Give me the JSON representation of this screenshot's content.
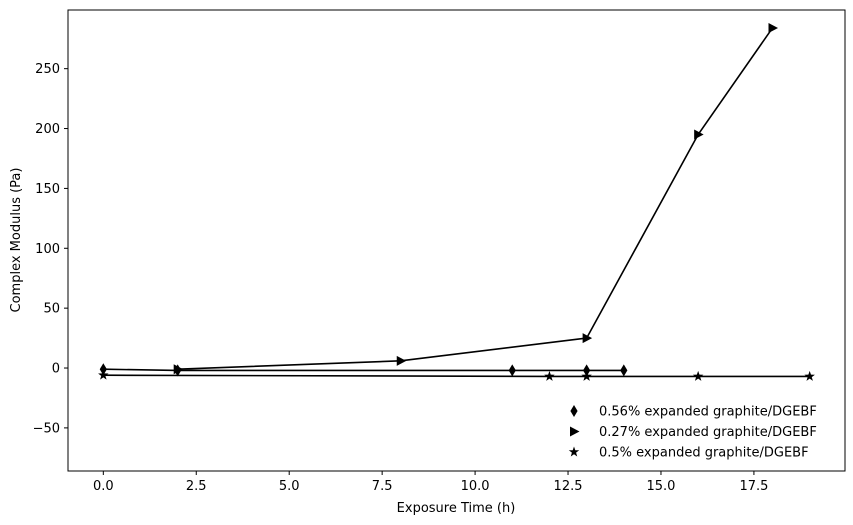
{
  "chart_data": {
    "type": "line",
    "title": "",
    "xlabel": "Exposure Time (h)",
    "ylabel": "Complex Modulus (Pa)",
    "xlim": [
      -0.95,
      19.95
    ],
    "ylim": [
      -86,
      299
    ],
    "x_ticks": [
      0.0,
      2.5,
      5.0,
      7.5,
      10.0,
      12.5,
      15.0,
      17.5
    ],
    "x_tick_labels": [
      "0.0",
      "2.5",
      "5.0",
      "7.5",
      "10.0",
      "12.5",
      "15.0",
      "17.5"
    ],
    "y_ticks": [
      -50,
      0,
      50,
      100,
      150,
      200,
      250
    ],
    "y_tick_labels": [
      "−50",
      "0",
      "50",
      "100",
      "150",
      "200",
      "250"
    ],
    "grid": false,
    "legend_position": "lower-right",
    "line_color": "#000000",
    "series": [
      {
        "name": "0.56% expanded graphite/DGEBF",
        "marker": "thin-diamond",
        "x": [
          0,
          2,
          11,
          13,
          14
        ],
        "y": [
          -1,
          -2,
          -2,
          -2,
          -2
        ]
      },
      {
        "name": "0.27% expanded graphite/DGEBF",
        "marker": "triangle-right",
        "x": [
          2,
          8,
          13,
          16,
          18
        ],
        "y": [
          -1,
          6,
          25,
          195,
          284
        ]
      },
      {
        "name": "0.5% expanded graphite/DGEBF",
        "marker": "star",
        "x": [
          0,
          12,
          13,
          16,
          19
        ],
        "y": [
          -6,
          -7,
          -7,
          -7,
          -7
        ]
      }
    ]
  }
}
